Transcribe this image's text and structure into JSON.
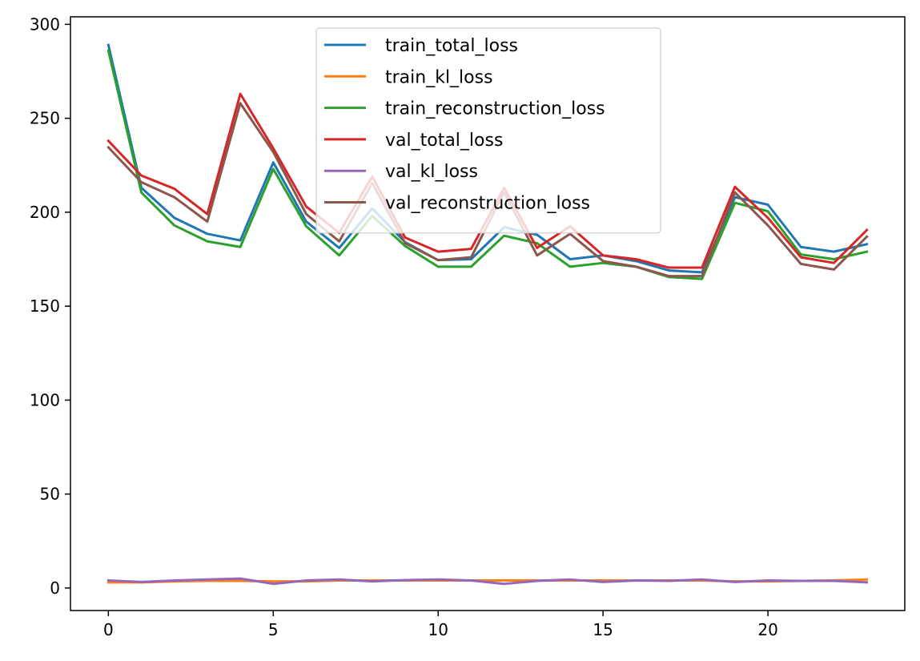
{
  "chart_data": {
    "type": "line",
    "title": "",
    "xlabel": "",
    "ylabel": "",
    "xlim": [
      -1.15,
      24.15
    ],
    "ylim": [
      -12,
      304
    ],
    "xticks": [
      0,
      5,
      10,
      15,
      20
    ],
    "yticks": [
      0,
      50,
      100,
      150,
      200,
      250,
      300
    ],
    "grid": false,
    "legend_position": "upper-center",
    "x": [
      0,
      1,
      2,
      3,
      4,
      5,
      6,
      7,
      8,
      9,
      10,
      11,
      12,
      13,
      14,
      15,
      16,
      17,
      18,
      19,
      20,
      21,
      22,
      23
    ],
    "series": [
      {
        "name": "train_total_loss",
        "color": "#1f77b4",
        "values": [
          289,
          213,
          197,
          188.5,
          185,
          226.5,
          195,
          181,
          202,
          184,
          174.5,
          175,
          192,
          188,
          175,
          177,
          174,
          169,
          168,
          208,
          204,
          181.5,
          179,
          183
        ]
      },
      {
        "name": "train_kl_loss",
        "color": "#ff7f0e",
        "values": [
          3,
          3,
          3.5,
          3.8,
          3.8,
          3.5,
          3.5,
          4,
          4,
          4,
          4,
          4,
          4,
          4,
          4,
          4,
          4,
          4,
          4,
          3.5,
          3.5,
          3.8,
          4,
          4.5
        ]
      },
      {
        "name": "train_reconstruction_loss",
        "color": "#2ca02c",
        "values": [
          286,
          210.5,
          193,
          184.5,
          181.5,
          223,
          192.5,
          177,
          198,
          182,
          171,
          171,
          187.5,
          183.5,
          171,
          173,
          171,
          165.5,
          164.5,
          205,
          200.5,
          177.5,
          175,
          179
        ]
      },
      {
        "name": "val_total_loss",
        "color": "#d62728",
        "values": [
          238,
          219.5,
          212.5,
          199,
          263,
          234,
          203,
          189,
          219,
          186.5,
          179,
          180.5,
          213,
          181,
          192.5,
          177,
          175,
          170.5,
          170.5,
          213.5,
          197,
          176,
          173,
          190.5
        ]
      },
      {
        "name": "val_kl_loss",
        "color": "#9467bd",
        "values": [
          4,
          3.2,
          4,
          4.5,
          5,
          2.2,
          4,
          4.5,
          3.5,
          4.2,
          4.5,
          4,
          2.2,
          3.8,
          4.5,
          3.2,
          4,
          3.8,
          4.5,
          3.2,
          4,
          3.8,
          3.8,
          3
        ]
      },
      {
        "name": "val_reconstruction_loss",
        "color": "#8c564b",
        "values": [
          234.5,
          216,
          208,
          195,
          258,
          232,
          199,
          184.5,
          215.5,
          183.5,
          174.5,
          176,
          210.5,
          177,
          188.5,
          174,
          171,
          166,
          166,
          210.5,
          193,
          172.5,
          169.5,
          187
        ]
      }
    ]
  }
}
